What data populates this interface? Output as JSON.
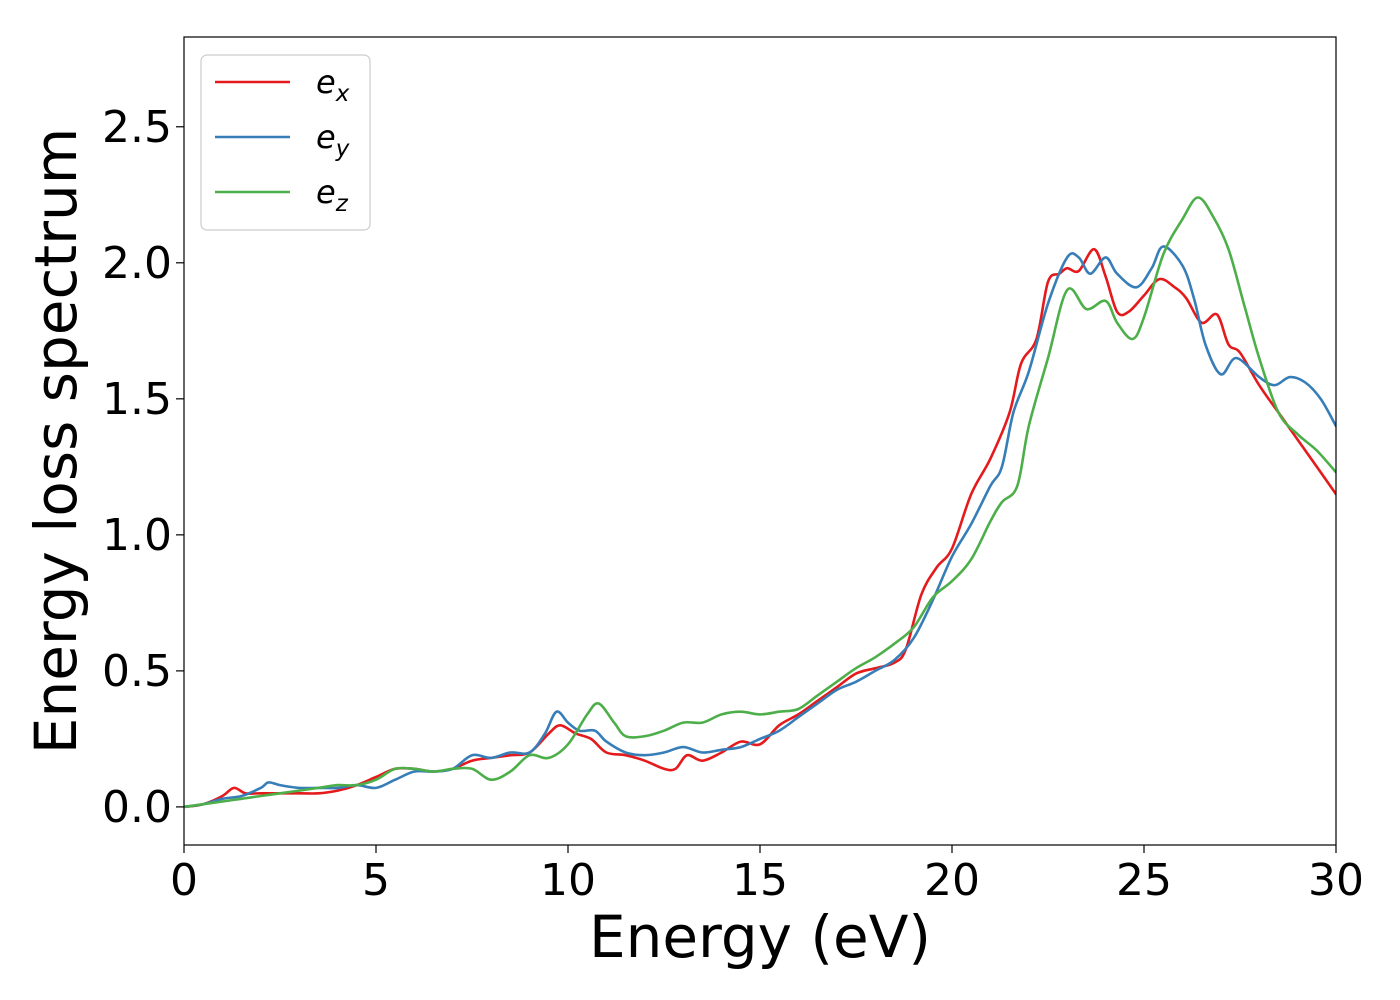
{
  "chart_data": {
    "type": "line",
    "title": "",
    "xlabel": "Energy (eV)",
    "ylabel": "Energy loss spectrum",
    "xlim": [
      0,
      30
    ],
    "ylim": [
      -0.14,
      2.83
    ],
    "xticks": [
      0,
      5,
      10,
      15,
      20,
      25,
      30
    ],
    "xtick_labels": [
      "0",
      "5",
      "10",
      "15",
      "20",
      "25",
      "30"
    ],
    "yticks": [
      0.0,
      0.5,
      1.0,
      1.5,
      2.0,
      2.5
    ],
    "ytick_labels": [
      "0.0",
      "0.5",
      "1.0",
      "1.5",
      "2.0",
      "2.5"
    ],
    "grid": false,
    "legend_position": "top-left",
    "series": [
      {
        "name": "e_x",
        "base": "e",
        "sub": "x",
        "color": "#e41a1c",
        "points": [
          [
            0,
            0
          ],
          [
            0.5,
            0.01
          ],
          [
            1.0,
            0.04
          ],
          [
            1.3,
            0.07
          ],
          [
            1.6,
            0.05
          ],
          [
            2.0,
            0.05
          ],
          [
            3.0,
            0.05
          ],
          [
            3.5,
            0.05
          ],
          [
            4.0,
            0.06
          ],
          [
            4.5,
            0.08
          ],
          [
            5.0,
            0.11
          ],
          [
            5.5,
            0.14
          ],
          [
            6.0,
            0.14
          ],
          [
            6.5,
            0.13
          ],
          [
            7.0,
            0.14
          ],
          [
            7.5,
            0.17
          ],
          [
            8.0,
            0.18
          ],
          [
            8.5,
            0.19
          ],
          [
            9.0,
            0.2
          ],
          [
            9.5,
            0.27
          ],
          [
            9.8,
            0.3
          ],
          [
            10.2,
            0.27
          ],
          [
            10.6,
            0.25
          ],
          [
            11.0,
            0.2
          ],
          [
            11.5,
            0.19
          ],
          [
            12.0,
            0.17
          ],
          [
            12.5,
            0.14
          ],
          [
            12.8,
            0.14
          ],
          [
            13.1,
            0.19
          ],
          [
            13.5,
            0.17
          ],
          [
            14.0,
            0.2
          ],
          [
            14.5,
            0.24
          ],
          [
            15.0,
            0.23
          ],
          [
            15.5,
            0.3
          ],
          [
            16.0,
            0.34
          ],
          [
            16.5,
            0.39
          ],
          [
            17.0,
            0.44
          ],
          [
            17.5,
            0.49
          ],
          [
            18.0,
            0.51
          ],
          [
            18.5,
            0.53
          ],
          [
            18.8,
            0.58
          ],
          [
            19.2,
            0.78
          ],
          [
            19.6,
            0.88
          ],
          [
            20.0,
            0.95
          ],
          [
            20.5,
            1.15
          ],
          [
            21.0,
            1.28
          ],
          [
            21.5,
            1.45
          ],
          [
            21.8,
            1.63
          ],
          [
            22.2,
            1.72
          ],
          [
            22.5,
            1.93
          ],
          [
            22.8,
            1.96
          ],
          [
            23.0,
            1.98
          ],
          [
            23.3,
            1.97
          ],
          [
            23.7,
            2.05
          ],
          [
            24.0,
            1.95
          ],
          [
            24.3,
            1.82
          ],
          [
            24.6,
            1.82
          ],
          [
            25.0,
            1.88
          ],
          [
            25.4,
            1.94
          ],
          [
            25.8,
            1.91
          ],
          [
            26.1,
            1.87
          ],
          [
            26.5,
            1.78
          ],
          [
            26.9,
            1.81
          ],
          [
            27.2,
            1.7
          ],
          [
            27.5,
            1.67
          ],
          [
            28.0,
            1.55
          ],
          [
            28.5,
            1.45
          ],
          [
            29.0,
            1.35
          ],
          [
            29.5,
            1.25
          ],
          [
            30.0,
            1.15
          ]
        ]
      },
      {
        "name": "e_y",
        "base": "e",
        "sub": "y",
        "color": "#377eb8",
        "points": [
          [
            0,
            0
          ],
          [
            0.5,
            0.01
          ],
          [
            1.0,
            0.03
          ],
          [
            1.5,
            0.04
          ],
          [
            2.0,
            0.07
          ],
          [
            2.2,
            0.09
          ],
          [
            2.5,
            0.08
          ],
          [
            3.0,
            0.07
          ],
          [
            3.5,
            0.07
          ],
          [
            4.0,
            0.07
          ],
          [
            4.5,
            0.08
          ],
          [
            5.0,
            0.07
          ],
          [
            5.5,
            0.1
          ],
          [
            6.0,
            0.13
          ],
          [
            6.5,
            0.13
          ],
          [
            7.0,
            0.14
          ],
          [
            7.5,
            0.19
          ],
          [
            8.0,
            0.18
          ],
          [
            8.5,
            0.2
          ],
          [
            9.0,
            0.2
          ],
          [
            9.4,
            0.27
          ],
          [
            9.7,
            0.35
          ],
          [
            10.0,
            0.31
          ],
          [
            10.3,
            0.28
          ],
          [
            10.7,
            0.28
          ],
          [
            11.0,
            0.24
          ],
          [
            11.5,
            0.2
          ],
          [
            12.0,
            0.19
          ],
          [
            12.5,
            0.2
          ],
          [
            13.0,
            0.22
          ],
          [
            13.5,
            0.2
          ],
          [
            14.0,
            0.21
          ],
          [
            14.5,
            0.22
          ],
          [
            15.0,
            0.25
          ],
          [
            15.5,
            0.28
          ],
          [
            16.0,
            0.33
          ],
          [
            16.5,
            0.38
          ],
          [
            17.0,
            0.43
          ],
          [
            17.5,
            0.46
          ],
          [
            18.0,
            0.5
          ],
          [
            18.5,
            0.54
          ],
          [
            19.0,
            0.62
          ],
          [
            19.5,
            0.76
          ],
          [
            20.0,
            0.92
          ],
          [
            20.5,
            1.04
          ],
          [
            21.0,
            1.18
          ],
          [
            21.3,
            1.25
          ],
          [
            21.6,
            1.45
          ],
          [
            22.0,
            1.6
          ],
          [
            22.5,
            1.85
          ],
          [
            23.0,
            2.02
          ],
          [
            23.3,
            2.02
          ],
          [
            23.6,
            1.96
          ],
          [
            24.0,
            2.02
          ],
          [
            24.3,
            1.96
          ],
          [
            24.8,
            1.91
          ],
          [
            25.2,
            1.98
          ],
          [
            25.5,
            2.06
          ],
          [
            26.0,
            1.99
          ],
          [
            26.3,
            1.87
          ],
          [
            26.6,
            1.7
          ],
          [
            27.0,
            1.59
          ],
          [
            27.4,
            1.65
          ],
          [
            28.0,
            1.58
          ],
          [
            28.4,
            1.55
          ],
          [
            28.8,
            1.58
          ],
          [
            29.2,
            1.56
          ],
          [
            29.6,
            1.5
          ],
          [
            30.0,
            1.4
          ]
        ]
      },
      {
        "name": "e_z",
        "base": "e",
        "sub": "z",
        "color": "#4daf4a",
        "points": [
          [
            0,
            0
          ],
          [
            0.5,
            0.01
          ],
          [
            1.0,
            0.02
          ],
          [
            1.5,
            0.03
          ],
          [
            2.0,
            0.04
          ],
          [
            2.5,
            0.05
          ],
          [
            3.0,
            0.06
          ],
          [
            3.5,
            0.07
          ],
          [
            4.0,
            0.08
          ],
          [
            4.5,
            0.08
          ],
          [
            5.0,
            0.1
          ],
          [
            5.5,
            0.14
          ],
          [
            6.0,
            0.14
          ],
          [
            6.5,
            0.13
          ],
          [
            7.0,
            0.14
          ],
          [
            7.5,
            0.14
          ],
          [
            8.0,
            0.1
          ],
          [
            8.5,
            0.13
          ],
          [
            9.0,
            0.19
          ],
          [
            9.5,
            0.18
          ],
          [
            10.0,
            0.23
          ],
          [
            10.5,
            0.34
          ],
          [
            10.8,
            0.38
          ],
          [
            11.2,
            0.31
          ],
          [
            11.5,
            0.26
          ],
          [
            12.0,
            0.26
          ],
          [
            12.5,
            0.28
          ],
          [
            13.0,
            0.31
          ],
          [
            13.5,
            0.31
          ],
          [
            14.0,
            0.34
          ],
          [
            14.5,
            0.35
          ],
          [
            15.0,
            0.34
          ],
          [
            15.5,
            0.35
          ],
          [
            16.0,
            0.36
          ],
          [
            16.5,
            0.41
          ],
          [
            17.0,
            0.46
          ],
          [
            17.5,
            0.51
          ],
          [
            18.0,
            0.55
          ],
          [
            18.5,
            0.6
          ],
          [
            19.0,
            0.66
          ],
          [
            19.5,
            0.77
          ],
          [
            20.0,
            0.83
          ],
          [
            20.5,
            0.91
          ],
          [
            21.0,
            1.05
          ],
          [
            21.3,
            1.12
          ],
          [
            21.7,
            1.18
          ],
          [
            22.0,
            1.4
          ],
          [
            22.5,
            1.65
          ],
          [
            23.0,
            1.9
          ],
          [
            23.5,
            1.83
          ],
          [
            24.0,
            1.86
          ],
          [
            24.3,
            1.78
          ],
          [
            24.7,
            1.72
          ],
          [
            25.0,
            1.8
          ],
          [
            25.5,
            2.03
          ],
          [
            26.0,
            2.16
          ],
          [
            26.4,
            2.24
          ],
          [
            26.8,
            2.17
          ],
          [
            27.2,
            2.05
          ],
          [
            27.6,
            1.85
          ],
          [
            28.0,
            1.65
          ],
          [
            28.5,
            1.45
          ],
          [
            29.0,
            1.37
          ],
          [
            29.5,
            1.31
          ],
          [
            30.0,
            1.23
          ]
        ]
      }
    ]
  }
}
